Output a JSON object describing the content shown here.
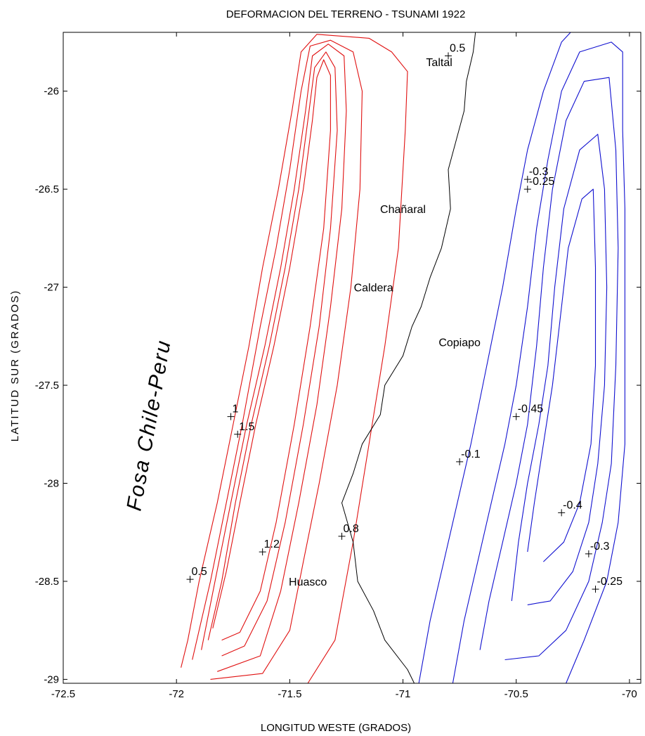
{
  "chart_data": {
    "type": "contour",
    "title": "DEFORMACION DEL TERRENO - TSUNAMI 1922",
    "xlabel": "LONGITUD WESTE (GRADOS)",
    "ylabel": "LATITUD SUR (GRADOS)",
    "xlim": [
      -72.5,
      -69.95
    ],
    "ylim": [
      -29.02,
      -25.7
    ],
    "xticks": [
      -72.5,
      -72,
      -71.5,
      -71,
      -70.5,
      -70
    ],
    "xtick_labels": [
      "-72.5",
      "-72",
      "-71.5",
      "-71",
      "-70.5",
      "-70"
    ],
    "yticks": [
      -26,
      -26.5,
      -27,
      -27.5,
      -28,
      -28.5,
      -29
    ],
    "ytick_labels": [
      "-26",
      "-26.5",
      "-27",
      "-27.5",
      "-28",
      "-28.5",
      "-29"
    ],
    "colors": {
      "uplift": "#e01010",
      "subsidence": "#1010d0",
      "coast": "#000000"
    },
    "uplift_contours": [
      {
        "level": 0.5,
        "points": [
          [
            -71.98,
            -28.94
          ],
          [
            -71.95,
            -28.8
          ],
          [
            -71.9,
            -28.5
          ],
          [
            -71.82,
            -28.1
          ],
          [
            -71.75,
            -27.7
          ],
          [
            -71.68,
            -27.3
          ],
          [
            -71.62,
            -26.9
          ],
          [
            -71.55,
            -26.5
          ],
          [
            -71.49,
            -26.1
          ],
          [
            -71.45,
            -25.8
          ],
          [
            -71.38,
            -25.71
          ],
          [
            -71.15,
            -25.73
          ],
          [
            -71.05,
            -25.8
          ],
          [
            -70.98,
            -25.9
          ],
          [
            -70.99,
            -26.2
          ],
          [
            -71.02,
            -26.8
          ],
          [
            -71.08,
            -27.3
          ],
          [
            -71.15,
            -27.8
          ],
          [
            -71.22,
            -28.3
          ],
          [
            -71.3,
            -28.8
          ],
          [
            -71.42,
            -29.02
          ]
        ]
      },
      {
        "level": 0.8,
        "points": [
          [
            -71.93,
            -28.9
          ],
          [
            -71.85,
            -28.5
          ],
          [
            -71.78,
            -28.1
          ],
          [
            -71.71,
            -27.7
          ],
          [
            -71.63,
            -27.2
          ],
          [
            -71.56,
            -26.8
          ],
          [
            -71.5,
            -26.4
          ],
          [
            -71.45,
            -26.0
          ],
          [
            -71.41,
            -25.77
          ],
          [
            -71.32,
            -25.74
          ],
          [
            -71.22,
            -25.8
          ],
          [
            -71.18,
            -26.0
          ],
          [
            -71.19,
            -26.5
          ],
          [
            -71.23,
            -27.0
          ],
          [
            -71.29,
            -27.5
          ],
          [
            -71.37,
            -28.0
          ],
          [
            -71.44,
            -28.4
          ],
          [
            -71.5,
            -28.75
          ],
          [
            -71.62,
            -28.97
          ],
          [
            -71.85,
            -29.0
          ]
        ]
      },
      {
        "level": 1.0,
        "points": [
          [
            -71.89,
            -28.85
          ],
          [
            -71.83,
            -28.5
          ],
          [
            -71.76,
            -28.1
          ],
          [
            -71.69,
            -27.7
          ],
          [
            -71.61,
            -27.3
          ],
          [
            -71.54,
            -26.9
          ],
          [
            -71.48,
            -26.5
          ],
          [
            -71.43,
            -26.1
          ],
          [
            -71.4,
            -25.82
          ],
          [
            -71.33,
            -25.76
          ],
          [
            -71.26,
            -25.82
          ],
          [
            -71.25,
            -26.1
          ],
          [
            -71.27,
            -26.6
          ],
          [
            -71.32,
            -27.1
          ],
          [
            -71.38,
            -27.6
          ],
          [
            -71.46,
            -28.1
          ],
          [
            -71.54,
            -28.55
          ],
          [
            -71.63,
            -28.88
          ],
          [
            -71.82,
            -28.96
          ]
        ]
      },
      {
        "level": 1.2,
        "points": [
          [
            -71.86,
            -28.8
          ],
          [
            -71.8,
            -28.5
          ],
          [
            -71.74,
            -28.1
          ],
          [
            -71.67,
            -27.7
          ],
          [
            -71.59,
            -27.3
          ],
          [
            -71.52,
            -26.9
          ],
          [
            -71.46,
            -26.5
          ],
          [
            -71.42,
            -26.15
          ],
          [
            -71.39,
            -25.88
          ],
          [
            -71.34,
            -25.8
          ],
          [
            -71.3,
            -25.88
          ],
          [
            -71.29,
            -26.2
          ],
          [
            -71.32,
            -26.7
          ],
          [
            -71.37,
            -27.2
          ],
          [
            -71.44,
            -27.7
          ],
          [
            -71.52,
            -28.2
          ],
          [
            -71.6,
            -28.6
          ],
          [
            -71.7,
            -28.83
          ],
          [
            -71.8,
            -28.88
          ]
        ]
      },
      {
        "level": 1.5,
        "points": [
          [
            -71.84,
            -28.74
          ],
          [
            -71.78,
            -28.45
          ],
          [
            -71.72,
            -28.1
          ],
          [
            -71.65,
            -27.7
          ],
          [
            -71.57,
            -27.3
          ],
          [
            -71.5,
            -26.9
          ],
          [
            -71.44,
            -26.5
          ],
          [
            -71.4,
            -26.15
          ],
          [
            -71.38,
            -25.93
          ],
          [
            -71.35,
            -25.84
          ],
          [
            -71.32,
            -25.92
          ],
          [
            -71.32,
            -26.2
          ],
          [
            -71.35,
            -26.7
          ],
          [
            -71.41,
            -27.2
          ],
          [
            -71.48,
            -27.7
          ],
          [
            -71.56,
            -28.2
          ],
          [
            -71.63,
            -28.55
          ],
          [
            -71.72,
            -28.76
          ],
          [
            -71.8,
            -28.8
          ]
        ]
      }
    ],
    "subsidence_contours": [
      {
        "level": -0.1,
        "points": [
          [
            -70.93,
            -29.02
          ],
          [
            -70.88,
            -28.7
          ],
          [
            -70.82,
            -28.4
          ],
          [
            -70.76,
            -28.1
          ],
          [
            -70.7,
            -27.8
          ],
          [
            -70.63,
            -27.4
          ],
          [
            -70.56,
            -27.0
          ],
          [
            -70.5,
            -26.6
          ],
          [
            -70.45,
            -26.3
          ],
          [
            -70.38,
            -26.0
          ],
          [
            -70.3,
            -25.75
          ],
          [
            -70.26,
            -25.7
          ]
        ]
      },
      {
        "level": -0.25,
        "points": [
          [
            -70.78,
            -29.02
          ],
          [
            -70.73,
            -28.7
          ],
          [
            -70.67,
            -28.4
          ],
          [
            -70.61,
            -28.1
          ],
          [
            -70.55,
            -27.8
          ],
          [
            -70.5,
            -27.5
          ],
          [
            -70.45,
            -27.1
          ],
          [
            -70.41,
            -26.7
          ],
          [
            -70.36,
            -26.35
          ],
          [
            -70.3,
            -26.0
          ],
          [
            -70.22,
            -25.8
          ],
          [
            -70.08,
            -25.75
          ],
          [
            -70.03,
            -25.8
          ],
          [
            -70.03,
            -26.2
          ],
          [
            -70.02,
            -26.6
          ],
          [
            -70.02,
            -27.2
          ],
          [
            -70.02,
            -27.8
          ],
          [
            -70.05,
            -28.2
          ],
          [
            -70.1,
            -28.5
          ],
          [
            -70.2,
            -28.8
          ],
          [
            -70.28,
            -29.02
          ]
        ]
      },
      {
        "level": -0.3,
        "points": [
          [
            -70.66,
            -28.85
          ],
          [
            -70.62,
            -28.6
          ],
          [
            -70.56,
            -28.3
          ],
          [
            -70.5,
            -28.0
          ],
          [
            -70.45,
            -27.7
          ],
          [
            -70.41,
            -27.3
          ],
          [
            -70.38,
            -26.9
          ],
          [
            -70.34,
            -26.5
          ],
          [
            -70.28,
            -26.15
          ],
          [
            -70.2,
            -25.95
          ],
          [
            -70.09,
            -25.93
          ],
          [
            -70.06,
            -26.3
          ],
          [
            -70.05,
            -26.8
          ],
          [
            -70.06,
            -27.4
          ],
          [
            -70.08,
            -27.9
          ],
          [
            -70.12,
            -28.2
          ],
          [
            -70.18,
            -28.5
          ],
          [
            -70.28,
            -28.75
          ],
          [
            -70.4,
            -28.88
          ],
          [
            -70.55,
            -28.9
          ]
        ]
      },
      {
        "level": -0.4,
        "points": [
          [
            -70.52,
            -28.6
          ],
          [
            -70.49,
            -28.3
          ],
          [
            -70.45,
            -28.0
          ],
          [
            -70.4,
            -27.7
          ],
          [
            -70.36,
            -27.4
          ],
          [
            -70.33,
            -27.0
          ],
          [
            -70.29,
            -26.6
          ],
          [
            -70.22,
            -26.3
          ],
          [
            -70.14,
            -26.22
          ],
          [
            -70.11,
            -26.5
          ],
          [
            -70.1,
            -27.0
          ],
          [
            -70.11,
            -27.5
          ],
          [
            -70.14,
            -27.9
          ],
          [
            -70.18,
            -28.2
          ],
          [
            -70.25,
            -28.45
          ],
          [
            -70.35,
            -28.6
          ],
          [
            -70.45,
            -28.62
          ]
        ]
      },
      {
        "level": -0.45,
        "points": [
          [
            -70.45,
            -28.35
          ],
          [
            -70.42,
            -28.1
          ],
          [
            -70.38,
            -27.8
          ],
          [
            -70.34,
            -27.5
          ],
          [
            -70.31,
            -27.2
          ],
          [
            -70.27,
            -26.8
          ],
          [
            -70.21,
            -26.55
          ],
          [
            -70.16,
            -26.5
          ],
          [
            -70.15,
            -26.9
          ],
          [
            -70.15,
            -27.4
          ],
          [
            -70.17,
            -27.8
          ],
          [
            -70.22,
            -28.1
          ],
          [
            -70.29,
            -28.3
          ],
          [
            -70.38,
            -28.4
          ]
        ]
      }
    ],
    "coastline": [
      [
        -70.95,
        -29.02
      ],
      [
        -70.98,
        -28.95
      ],
      [
        -71.08,
        -28.8
      ],
      [
        -71.13,
        -28.65
      ],
      [
        -71.2,
        -28.5
      ],
      [
        -71.22,
        -28.3
      ],
      [
        -71.27,
        -28.1
      ],
      [
        -71.22,
        -27.95
      ],
      [
        -71.18,
        -27.8
      ],
      [
        -71.1,
        -27.65
      ],
      [
        -71.08,
        -27.5
      ],
      [
        -71.0,
        -27.35
      ],
      [
        -70.96,
        -27.2
      ],
      [
        -70.92,
        -27.1
      ],
      [
        -70.88,
        -26.95
      ],
      [
        -70.83,
        -26.8
      ],
      [
        -70.79,
        -26.6
      ],
      [
        -70.8,
        -26.4
      ],
      [
        -70.73,
        -26.1
      ],
      [
        -70.72,
        -25.95
      ],
      [
        -70.69,
        -25.8
      ],
      [
        -70.68,
        -25.7
      ]
    ],
    "contour_labels": [
      {
        "text": "0.5",
        "x": -70.8,
        "y": -25.82
      },
      {
        "text": "-0.3",
        "x": -70.45,
        "y": -26.45
      },
      {
        "text": "-0.25",
        "x": -70.45,
        "y": -26.5
      },
      {
        "text": "1",
        "x": -71.76,
        "y": -27.66
      },
      {
        "text": "1.5",
        "x": -71.73,
        "y": -27.75
      },
      {
        "text": "-0.45",
        "x": -70.5,
        "y": -27.66
      },
      {
        "text": "-0.1",
        "x": -70.75,
        "y": -27.89
      },
      {
        "text": "-0.4",
        "x": -70.3,
        "y": -28.15
      },
      {
        "text": "1.2",
        "x": -71.62,
        "y": -28.35
      },
      {
        "text": "0.8",
        "x": -71.27,
        "y": -28.27
      },
      {
        "text": "-0.3",
        "x": -70.18,
        "y": -28.36
      },
      {
        "text": "0.5",
        "x": -71.94,
        "y": -28.49
      },
      {
        "text": "-0.25",
        "x": -70.15,
        "y": -28.54
      }
    ],
    "city_labels": [
      {
        "text": "Taltal",
        "x": -70.84,
        "y": -25.85
      },
      {
        "text": "Chañaral",
        "x": -71.0,
        "y": -26.6
      },
      {
        "text": "Caldera",
        "x": -71.13,
        "y": -27.0
      },
      {
        "text": "Copiapo",
        "x": -70.75,
        "y": -27.28
      },
      {
        "text": "Huasco",
        "x": -71.42,
        "y": -28.5
      }
    ],
    "annotation": "Fosa Chile-Peru"
  }
}
